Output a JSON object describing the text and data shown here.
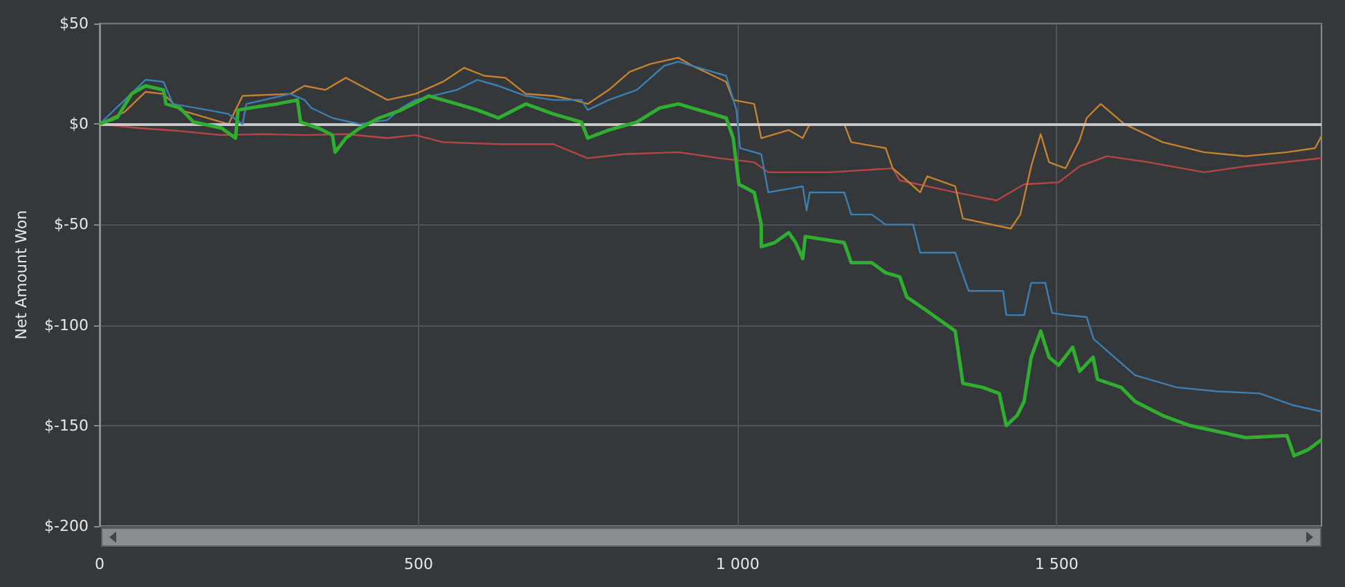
{
  "chart_data": {
    "type": "line",
    "ylabel": "Net Amount Won",
    "xlim": [
      0,
      1915
    ],
    "xticks": [
      0,
      500,
      {
        "value": 1000,
        "label": "1 000"
      },
      {
        "value": 1500,
        "label": "1 500"
      }
    ],
    "ylim": [
      -200,
      50
    ],
    "yticks": [
      {
        "value": -200,
        "label": "$-200"
      },
      {
        "value": -150,
        "label": "$-150"
      },
      {
        "value": -100,
        "label": "$-100"
      },
      {
        "value": -50,
        "label": "$-50"
      },
      {
        "value": 0,
        "label": "$0"
      },
      {
        "value": 50,
        "label": "$50"
      }
    ],
    "grid": true,
    "marker": "none",
    "line_style": "solid",
    "ref_lines": [
      {
        "axis": "y",
        "value": 0,
        "label": null,
        "color": "#c8c8c8"
      }
    ],
    "series": [
      {
        "color": "#b84545",
        "x": [
          0,
          61,
          126,
          191,
          256,
          321,
          386,
          451,
          495,
          538,
          625,
          711,
          765,
          820,
          907,
          972,
          1026,
          1048,
          1145,
          1243,
          1254,
          1341,
          1406,
          1449,
          1503,
          1536,
          1579,
          1644,
          1731,
          1796,
          1915
        ],
        "values": [
          0,
          -2,
          -3.5,
          -5.5,
          -5,
          -5.5,
          -5,
          -7,
          -5.5,
          -9,
          -10,
          -10,
          -17,
          -15,
          -14,
          -17,
          -19,
          -24,
          -24,
          -22,
          -28,
          -34,
          -38,
          -30,
          -29,
          -21,
          -16,
          -19,
          -24,
          -21,
          -17
        ]
      },
      {
        "color": "#c8812f",
        "x": [
          0,
          39,
          72,
          100,
          126,
          191,
          202,
          224,
          299,
          321,
          354,
          386,
          451,
          495,
          538,
          571,
          603,
          636,
          668,
          711,
          743,
          765,
          798,
          831,
          864,
          907,
          929,
          982,
          993,
          1026,
          1037,
          1080,
          1102,
          1113,
          1167,
          1178,
          1232,
          1243,
          1265,
          1286,
          1297,
          1341,
          1353,
          1428,
          1443,
          1460,
          1475,
          1488,
          1514,
          1536,
          1547,
          1569,
          1606,
          1666,
          1731,
          1796,
          1861,
          1905,
          1915
        ],
        "values": [
          0,
          6,
          16,
          15,
          7,
          1,
          0,
          14,
          15,
          19,
          17,
          23,
          12,
          15,
          21,
          28,
          24,
          23,
          15,
          14,
          12,
          10,
          17,
          26,
          30,
          33,
          29,
          21,
          12,
          10,
          -7,
          -3,
          -7,
          0,
          0,
          -9,
          -12,
          -22,
          -28,
          -34,
          -26,
          -31,
          -47,
          -52,
          -45,
          -21,
          -5,
          -19,
          -22,
          -8,
          3,
          10,
          0,
          -9,
          -14,
          -16,
          -14,
          -12,
          -6
        ]
      },
      {
        "color": "#3b7fb3",
        "x": [
          0,
          72,
          100,
          115,
          169,
          202,
          224,
          230,
          299,
          321,
          332,
          365,
          408,
          451,
          473,
          495,
          560,
          592,
          625,
          668,
          711,
          755,
          765,
          798,
          842,
          885,
          907,
          939,
          982,
          998,
          1004,
          1037,
          1048,
          1102,
          1108,
          1113,
          1167,
          1178,
          1210,
          1232,
          1275,
          1286,
          1341,
          1362,
          1416,
          1421,
          1449,
          1460,
          1482,
          1493,
          1514,
          1547,
          1558,
          1623,
          1688,
          1753,
          1818,
          1872,
          1915
        ],
        "values": [
          0,
          22,
          21,
          10,
          7,
          5,
          0,
          10,
          15,
          12,
          8,
          3,
          0,
          2,
          8,
          12,
          17,
          22,
          19,
          14,
          12,
          12,
          7,
          12,
          17,
          29,
          31,
          28,
          24,
          7,
          -12,
          -15,
          -34,
          -31,
          -43,
          -34,
          -34,
          -45,
          -45,
          -50,
          -50,
          -64,
          -64,
          -83,
          -83,
          -95,
          -95,
          -79,
          -79,
          -94,
          -95,
          -96,
          -107,
          -125,
          -131,
          -133,
          -134,
          -140,
          -143
        ]
      },
      {
        "color": "#2fae2f",
        "x": [
          0,
          28,
          50,
          72,
          100,
          104,
          126,
          147,
          191,
          213,
          217,
          256,
          278,
          310,
          315,
          343,
          365,
          369,
          386,
          408,
          438,
          473,
          516,
          560,
          592,
          625,
          668,
          711,
          755,
          765,
          798,
          842,
          878,
          907,
          939,
          982,
          993,
          1002,
          1026,
          1037,
          1037,
          1058,
          1080,
          1091,
          1102,
          1106,
          1167,
          1178,
          1210,
          1232,
          1254,
          1265,
          1297,
          1341,
          1353,
          1384,
          1410,
          1421,
          1438,
          1449,
          1460,
          1475,
          1488,
          1503,
          1525,
          1536,
          1557,
          1564,
          1601,
          1623,
          1666,
          1709,
          1753,
          1796,
          1861,
          1872,
          1894,
          1915
        ],
        "values": [
          0,
          3.4,
          15,
          19,
          17,
          10,
          8,
          1,
          -2,
          -7,
          7,
          9,
          10,
          12,
          1,
          -2,
          -5.5,
          -14,
          -7,
          -2,
          3,
          7,
          14,
          10,
          7,
          3,
          10,
          5,
          1,
          -7,
          -3,
          1,
          8,
          10,
          7,
          3,
          -7,
          -30,
          -34,
          -50,
          -61,
          -59,
          -54,
          -59,
          -67,
          -56,
          -59,
          -69,
          -69,
          -74,
          -76,
          -86,
          -93,
          -103,
          -129,
          -131,
          -134,
          -150,
          -145,
          -138,
          -116,
          -103,
          -116,
          -120,
          -111,
          -123,
          -116,
          -127,
          -131,
          -138,
          -145,
          -150,
          -153,
          -156,
          -155,
          -165,
          -162,
          -157
        ]
      }
    ]
  }
}
